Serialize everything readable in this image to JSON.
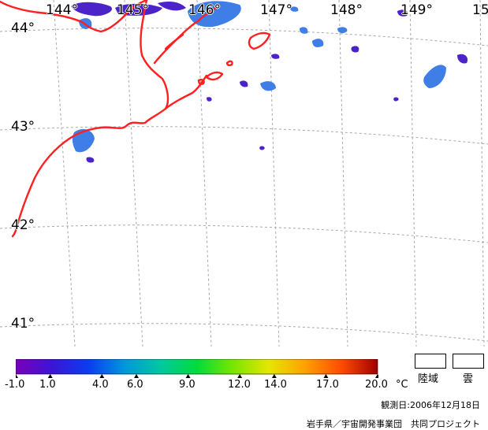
{
  "map": {
    "longitude_labels": [
      "144°",
      "145°",
      "146°",
      "147°",
      "148°",
      "149°",
      "15"
    ],
    "latitude_labels": [
      "44°",
      "43°",
      "42°",
      "41°"
    ]
  },
  "colors": {
    "coastline": "#ff2020",
    "graticule": "#a8a8a8",
    "cloud_blue": "#3f7ee6",
    "cloud_violet": "#4b23c9",
    "background": "#ffffff"
  },
  "color_scale": {
    "min": -1.0,
    "max": 20.0,
    "unit": "°C",
    "tick_labels": [
      "-1.0",
      "1.0",
      "4.0",
      "6.0",
      "9.0",
      "12.0",
      "14.0",
      "17.0",
      "20.0"
    ],
    "tick_values": [
      -1.0,
      1.0,
      4.0,
      6.0,
      9.0,
      12.0,
      14.0,
      17.0,
      20.0
    ],
    "gradient_colors": [
      "#7a00b8",
      "#3d14d6",
      "#0a3cf0",
      "#0096dc",
      "#00c8a0",
      "#00dc3c",
      "#78e600",
      "#e6e600",
      "#ffa000",
      "#ff4b00",
      "#a00000"
    ]
  },
  "legend": {
    "land_label": "陸域",
    "cloud_label": "雲"
  },
  "footer": {
    "observation_date": "観測日:2006年12月18日",
    "credit": "岩手県／宇宙開発事業団　共同プロジェクト"
  }
}
